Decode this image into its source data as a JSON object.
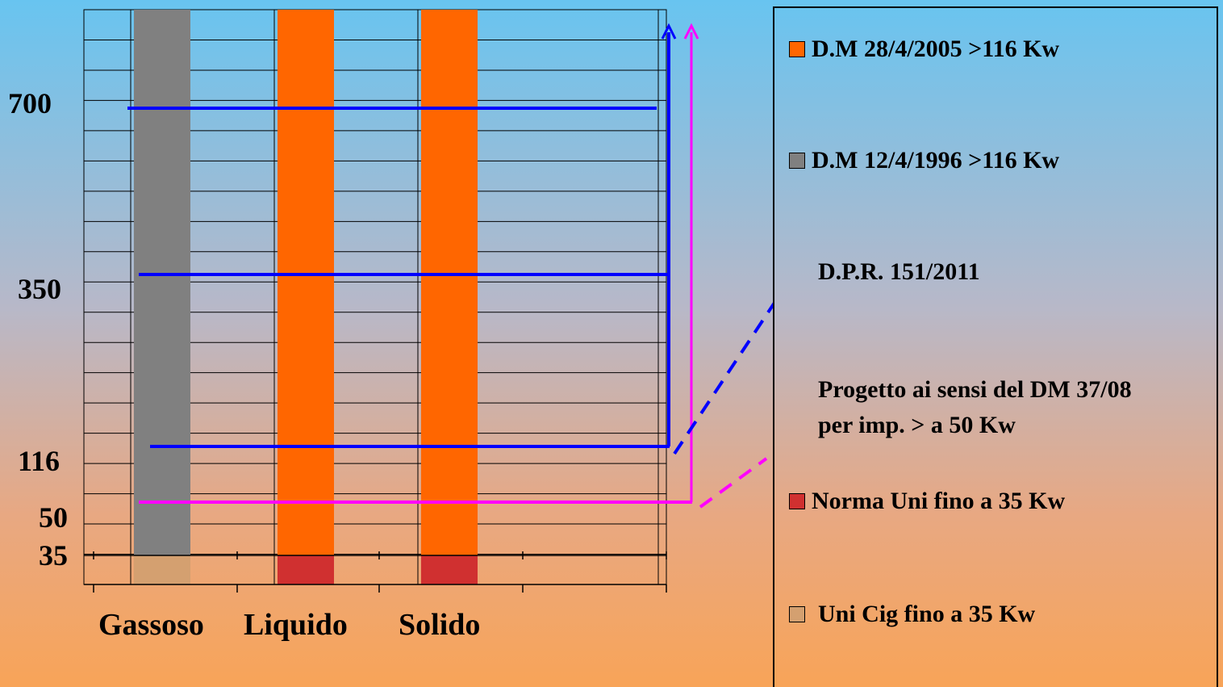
{
  "chart_data": {
    "type": "bar",
    "categories": [
      "Gassoso",
      "Liquido",
      "Solido"
    ],
    "y_ticks": [
      "700",
      "350",
      "116",
      "50",
      "35"
    ],
    "bars": [
      {
        "category": "Gassoso",
        "segments": [
          {
            "from": 0,
            "to": 35,
            "color": "#d4a070"
          },
          {
            "from": 35,
            "to": 1000,
            "color": "#808080"
          }
        ]
      },
      {
        "category": "Liquido",
        "segments": [
          {
            "from": 0,
            "to": 35,
            "color": "#d03030"
          },
          {
            "from": 35,
            "to": 1000,
            "color": "#ff6600"
          }
        ]
      },
      {
        "category": "Solido",
        "segments": [
          {
            "from": 0,
            "to": 35,
            "color": "#d03030"
          },
          {
            "from": 35,
            "to": 1000,
            "color": "#ff6600"
          }
        ]
      }
    ],
    "threshold_lines": [
      {
        "value": 700,
        "color": "#0000ff"
      },
      {
        "value": 350,
        "color": "#0000ff"
      },
      {
        "value": 116,
        "color": "#0000ff"
      },
      {
        "value": 50,
        "color": "#ff00ff"
      }
    ],
    "grid": true
  },
  "legend": [
    {
      "label": "D.M 28/4/2005 >116 Kw",
      "kind": "swatch",
      "color": "#ff6600"
    },
    {
      "label": "D.M 12/4/1996 >116 Kw",
      "kind": "swatch",
      "color": "#808080"
    },
    {
      "label": "D.P.R. 151/2011",
      "kind": "line",
      "color": "#0000ff"
    },
    {
      "label": "Progetto ai sensi del DM 37/08",
      "label2": "per imp. > a 50 Kw",
      "kind": "line",
      "color": "#ff00ff"
    },
    {
      "label": "Norma Uni fino a 35 Kw",
      "kind": "swatch",
      "color": "#d03030"
    },
    {
      "label": "Uni Cig fino a 35 Kw",
      "kind": "swatch",
      "color": "#d4a070"
    }
  ]
}
